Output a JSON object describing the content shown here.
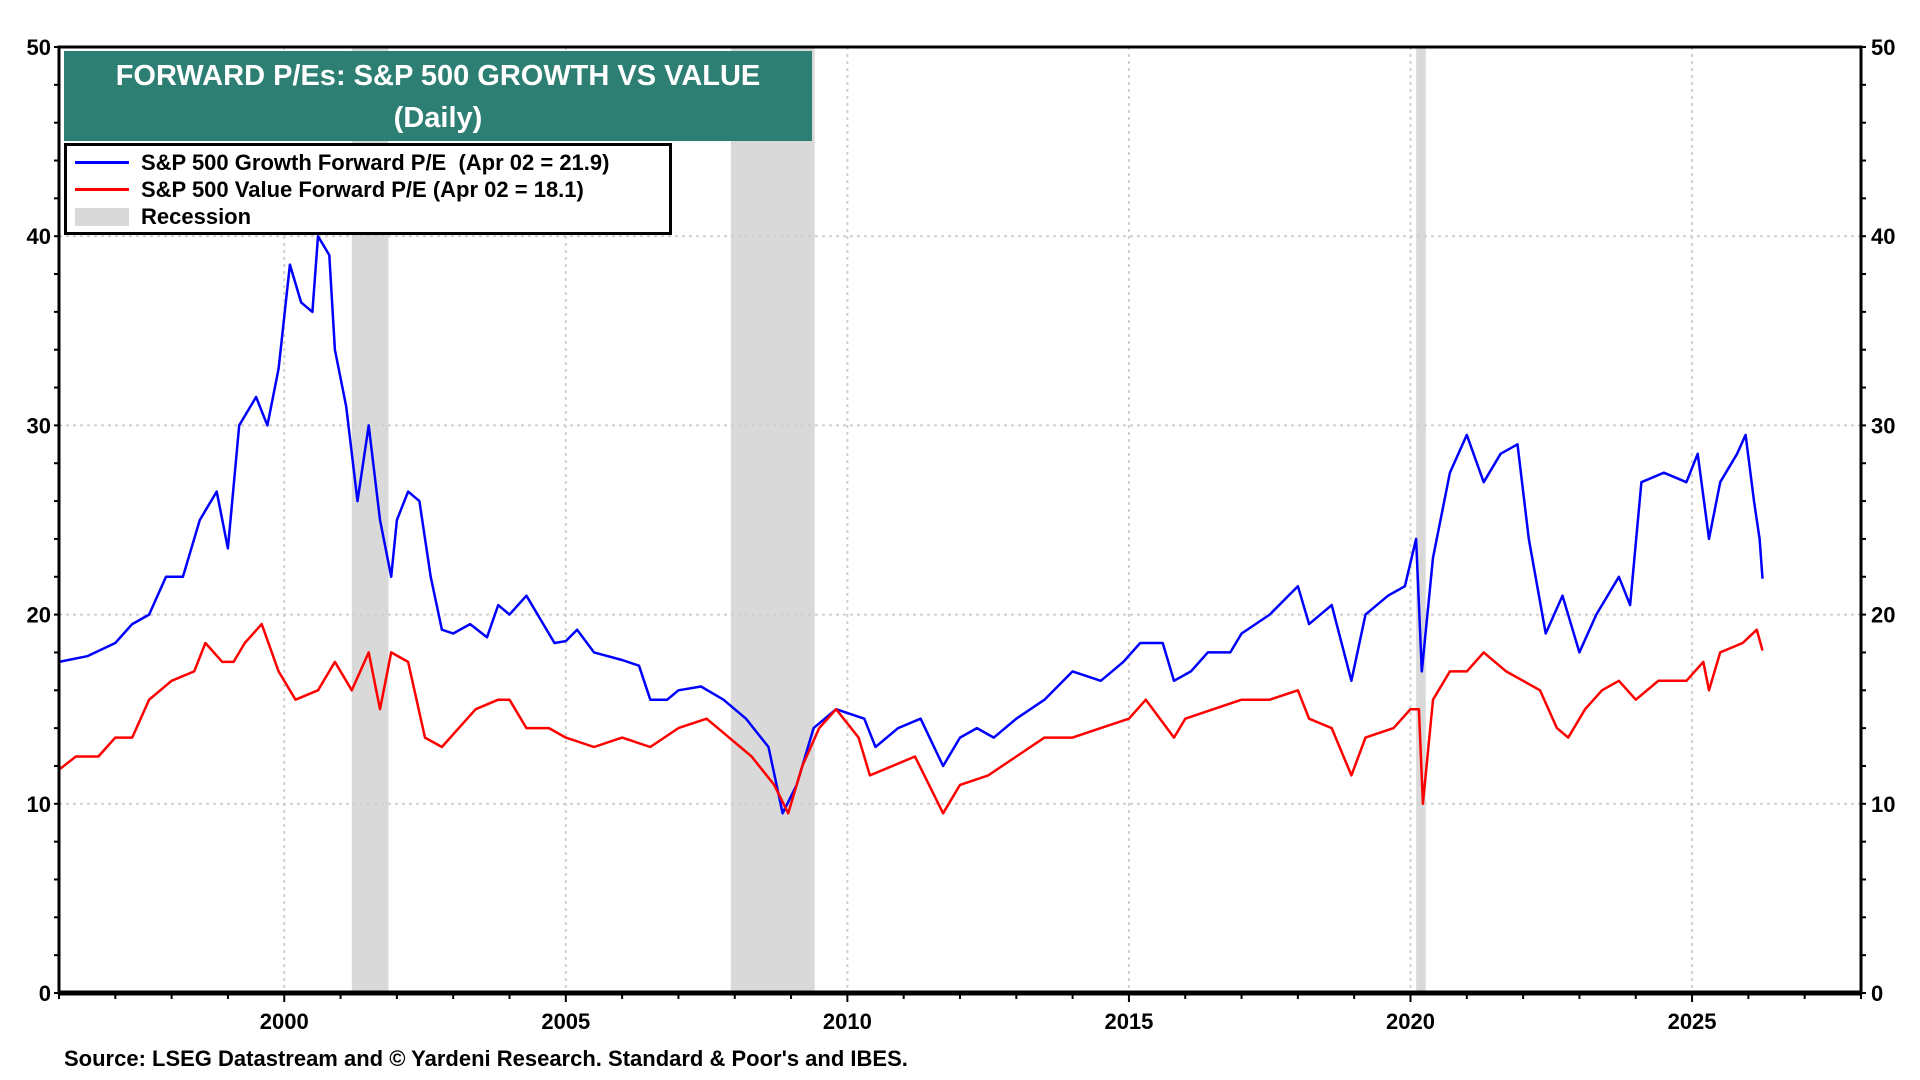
{
  "chart_data": {
    "type": "line",
    "title": "FORWARD P/Es: S&P 500 GROWTH VS VALUE",
    "subtitle": "(Daily)",
    "xlabel": "",
    "ylabel": "",
    "xlim": [
      1996,
      2028
    ],
    "ylim": [
      0,
      50
    ],
    "y_ticks": [
      0,
      10,
      20,
      30,
      40,
      50
    ],
    "x_ticks": [
      2000,
      2005,
      2010,
      2015,
      2020,
      2025
    ],
    "grid": true,
    "legend_position": "top-left",
    "colors": {
      "growth": "#0000ff",
      "value": "#ff0000",
      "recession": "#d9d9d9",
      "title_bg": "#2e7f73"
    },
    "recessions": [
      [
        2001.2,
        2001.85
      ],
      [
        2007.93,
        2009.42
      ],
      [
        2020.1,
        2020.27
      ]
    ],
    "series": [
      {
        "name": "S&P 500 Growth Forward P/E  (Apr 02 = 21.9)",
        "color": "#0000ff",
        "points": [
          [
            1996.0,
            17.5
          ],
          [
            1996.5,
            17.8
          ],
          [
            1997.0,
            18.5
          ],
          [
            1997.3,
            19.5
          ],
          [
            1997.6,
            20
          ],
          [
            1997.9,
            22
          ],
          [
            1998.2,
            22
          ],
          [
            1998.5,
            25
          ],
          [
            1998.8,
            26.5
          ],
          [
            1999.0,
            23.5
          ],
          [
            1999.2,
            30
          ],
          [
            1999.5,
            31.5
          ],
          [
            1999.7,
            30
          ],
          [
            1999.9,
            33
          ],
          [
            2000.1,
            38.5
          ],
          [
            2000.3,
            36.5
          ],
          [
            2000.5,
            36
          ],
          [
            2000.6,
            40
          ],
          [
            2000.8,
            39
          ],
          [
            2000.9,
            34
          ],
          [
            2001.1,
            31
          ],
          [
            2001.3,
            26
          ],
          [
            2001.5,
            30
          ],
          [
            2001.7,
            25
          ],
          [
            2001.9,
            22
          ],
          [
            2002.0,
            25
          ],
          [
            2002.2,
            26.5
          ],
          [
            2002.4,
            26
          ],
          [
            2002.6,
            22
          ],
          [
            2002.8,
            19.2
          ],
          [
            2003.0,
            19
          ],
          [
            2003.3,
            19.5
          ],
          [
            2003.6,
            18.8
          ],
          [
            2003.8,
            20.5
          ],
          [
            2004.0,
            20
          ],
          [
            2004.3,
            21
          ],
          [
            2004.6,
            19.5
          ],
          [
            2004.8,
            18.5
          ],
          [
            2005.0,
            18.6
          ],
          [
            2005.2,
            19.2
          ],
          [
            2005.5,
            18
          ],
          [
            2006.0,
            17.6
          ],
          [
            2006.3,
            17.3
          ],
          [
            2006.5,
            15.5
          ],
          [
            2006.8,
            15.5
          ],
          [
            2007.0,
            16
          ],
          [
            2007.4,
            16.2
          ],
          [
            2007.8,
            15.5
          ],
          [
            2008.2,
            14.5
          ],
          [
            2008.6,
            13
          ],
          [
            2008.85,
            9.5
          ],
          [
            2009.1,
            11
          ],
          [
            2009.4,
            14
          ],
          [
            2009.8,
            15
          ],
          [
            2010.3,
            14.5
          ],
          [
            2010.5,
            13
          ],
          [
            2010.9,
            14
          ],
          [
            2011.3,
            14.5
          ],
          [
            2011.7,
            12
          ],
          [
            2012.0,
            13.5
          ],
          [
            2012.3,
            14
          ],
          [
            2012.6,
            13.5
          ],
          [
            2013.0,
            14.5
          ],
          [
            2013.5,
            15.5
          ],
          [
            2014.0,
            17
          ],
          [
            2014.5,
            16.5
          ],
          [
            2014.9,
            17.5
          ],
          [
            2015.2,
            18.5
          ],
          [
            2015.6,
            18.5
          ],
          [
            2015.8,
            16.5
          ],
          [
            2016.1,
            17
          ],
          [
            2016.4,
            18
          ],
          [
            2016.8,
            18
          ],
          [
            2017.0,
            19
          ],
          [
            2017.5,
            20
          ],
          [
            2018.0,
            21.5
          ],
          [
            2018.2,
            19.5
          ],
          [
            2018.6,
            20.5
          ],
          [
            2018.95,
            16.5
          ],
          [
            2019.2,
            20
          ],
          [
            2019.6,
            21
          ],
          [
            2019.9,
            21.5
          ],
          [
            2020.1,
            24
          ],
          [
            2020.2,
            17
          ],
          [
            2020.4,
            23
          ],
          [
            2020.7,
            27.5
          ],
          [
            2021.0,
            29.5
          ],
          [
            2021.3,
            27
          ],
          [
            2021.6,
            28.5
          ],
          [
            2021.9,
            29
          ],
          [
            2022.1,
            24
          ],
          [
            2022.4,
            19
          ],
          [
            2022.7,
            21
          ],
          [
            2023.0,
            18
          ],
          [
            2023.3,
            20
          ],
          [
            2023.7,
            22
          ],
          [
            2023.9,
            20.5
          ],
          [
            2024.1,
            27
          ],
          [
            2024.5,
            27.5
          ],
          [
            2024.9,
            27
          ],
          [
            2025.1,
            28.5
          ],
          [
            2025.3,
            24
          ],
          [
            2025.5,
            27
          ],
          [
            2025.8,
            28.5
          ],
          [
            2025.95,
            29.5
          ],
          [
            2026.1,
            26
          ],
          [
            2026.2,
            24
          ],
          [
            2026.25,
            21.9
          ]
        ]
      },
      {
        "name": "S&P 500 Value Forward P/E (Apr 02 = 18.1)",
        "color": "#ff0000",
        "points": [
          [
            1996.0,
            11.8
          ],
          [
            1996.3,
            12.5
          ],
          [
            1996.7,
            12.5
          ],
          [
            1997.0,
            13.5
          ],
          [
            1997.3,
            13.5
          ],
          [
            1997.6,
            15.5
          ],
          [
            1998.0,
            16.5
          ],
          [
            1998.4,
            17
          ],
          [
            1998.6,
            18.5
          ],
          [
            1998.9,
            17.5
          ],
          [
            1999.1,
            17.5
          ],
          [
            1999.3,
            18.5
          ],
          [
            1999.6,
            19.5
          ],
          [
            1999.9,
            17
          ],
          [
            2000.2,
            15.5
          ],
          [
            2000.6,
            16
          ],
          [
            2000.9,
            17.5
          ],
          [
            2001.2,
            16
          ],
          [
            2001.5,
            18
          ],
          [
            2001.7,
            15
          ],
          [
            2001.9,
            18
          ],
          [
            2002.2,
            17.5
          ],
          [
            2002.5,
            13.5
          ],
          [
            2002.8,
            13
          ],
          [
            2003.1,
            14
          ],
          [
            2003.4,
            15
          ],
          [
            2003.8,
            15.5
          ],
          [
            2004.0,
            15.5
          ],
          [
            2004.3,
            14
          ],
          [
            2004.7,
            14
          ],
          [
            2005.0,
            13.5
          ],
          [
            2005.5,
            13
          ],
          [
            2006.0,
            13.5
          ],
          [
            2006.5,
            13
          ],
          [
            2007.0,
            14
          ],
          [
            2007.5,
            14.5
          ],
          [
            2007.9,
            13.5
          ],
          [
            2008.3,
            12.5
          ],
          [
            2008.7,
            11
          ],
          [
            2008.95,
            9.5
          ],
          [
            2009.2,
            12
          ],
          [
            2009.5,
            14
          ],
          [
            2009.8,
            15
          ],
          [
            2010.2,
            13.5
          ],
          [
            2010.4,
            11.5
          ],
          [
            2010.8,
            12
          ],
          [
            2011.2,
            12.5
          ],
          [
            2011.7,
            9.5
          ],
          [
            2012.0,
            11
          ],
          [
            2012.5,
            11.5
          ],
          [
            2013.0,
            12.5
          ],
          [
            2013.5,
            13.5
          ],
          [
            2014.0,
            13.5
          ],
          [
            2014.5,
            14
          ],
          [
            2015.0,
            14.5
          ],
          [
            2015.3,
            15.5
          ],
          [
            2015.8,
            13.5
          ],
          [
            2016.0,
            14.5
          ],
          [
            2016.5,
            15
          ],
          [
            2017.0,
            15.5
          ],
          [
            2017.5,
            15.5
          ],
          [
            2018.0,
            16
          ],
          [
            2018.2,
            14.5
          ],
          [
            2018.6,
            14
          ],
          [
            2018.95,
            11.5
          ],
          [
            2019.2,
            13.5
          ],
          [
            2019.7,
            14
          ],
          [
            2020.0,
            15
          ],
          [
            2020.15,
            15
          ],
          [
            2020.22,
            10
          ],
          [
            2020.4,
            15.5
          ],
          [
            2020.7,
            17
          ],
          [
            2021.0,
            17
          ],
          [
            2021.3,
            18
          ],
          [
            2021.7,
            17
          ],
          [
            2022.0,
            16.5
          ],
          [
            2022.3,
            16
          ],
          [
            2022.6,
            14
          ],
          [
            2022.8,
            13.5
          ],
          [
            2023.1,
            15
          ],
          [
            2023.4,
            16
          ],
          [
            2023.7,
            16.5
          ],
          [
            2024.0,
            15.5
          ],
          [
            2024.4,
            16.5
          ],
          [
            2024.9,
            16.5
          ],
          [
            2025.2,
            17.5
          ],
          [
            2025.3,
            16
          ],
          [
            2025.5,
            18
          ],
          [
            2025.9,
            18.5
          ],
          [
            2026.15,
            19.2
          ],
          [
            2026.25,
            18.1
          ]
        ]
      }
    ],
    "legend": {
      "recession_label": "Recession"
    },
    "source": "Source: LSEG Datastream and © Yardeni Research. Standard & Poor's and IBES."
  }
}
